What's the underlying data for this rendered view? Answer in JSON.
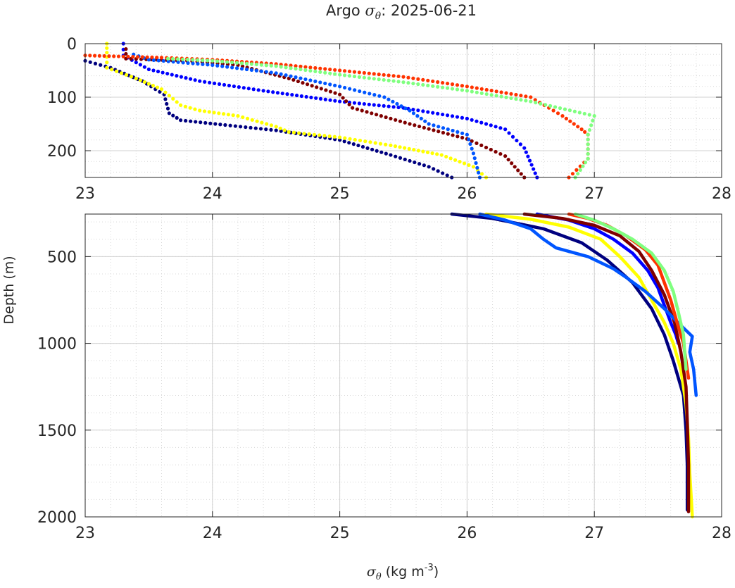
{
  "figure": {
    "title_prefix": "Argo ",
    "title_symbol": "σ",
    "title_subscript": "θ",
    "title_suffix": ": 2025-06-21"
  },
  "chart_data": [
    {
      "type": "scatter",
      "panel": "top",
      "xlim": [
        23,
        28
      ],
      "ylim": [
        0,
        250
      ],
      "y_reversed": true,
      "xticks": [
        23,
        24,
        25,
        26,
        27,
        28
      ],
      "yticks": [
        0,
        100,
        200
      ],
      "grid": true,
      "minor_grid": true,
      "xlabel": "",
      "ylabel": "",
      "series": [
        {
          "name": "profile-navy",
          "color": "#00007f",
          "marker": "dot",
          "points": [
            [
              23.0,
              32
            ],
            [
              23.2,
              45
            ],
            [
              23.45,
              70
            ],
            [
              23.62,
              95
            ],
            [
              23.66,
              130
            ],
            [
              23.75,
              143
            ],
            [
              24.1,
              152
            ],
            [
              24.5,
              162
            ],
            [
              25.0,
              180
            ],
            [
              25.4,
              208
            ],
            [
              25.7,
              230
            ],
            [
              25.88,
              250
            ]
          ]
        },
        {
          "name": "profile-yellow",
          "color": "#ffff00",
          "marker": "dot",
          "points": [
            [
              23.17,
              0
            ],
            [
              23.17,
              25
            ],
            [
              23.17,
              45
            ],
            [
              23.4,
              65
            ],
            [
              23.6,
              85
            ],
            [
              23.75,
              115
            ],
            [
              23.9,
              125
            ],
            [
              24.2,
              135
            ],
            [
              24.5,
              155
            ],
            [
              24.6,
              165
            ],
            [
              25.0,
              175
            ],
            [
              25.4,
              190
            ],
            [
              25.8,
              208
            ],
            [
              26.05,
              230
            ],
            [
              26.15,
              250
            ]
          ]
        },
        {
          "name": "profile-blue",
          "color": "#0000ff",
          "marker": "dot",
          "points": [
            [
              23.3,
              0
            ],
            [
              23.3,
              22
            ],
            [
              23.5,
              48
            ],
            [
              23.9,
              70
            ],
            [
              24.4,
              88
            ],
            [
              25.0,
              108
            ],
            [
              25.5,
              120
            ],
            [
              26.0,
              140
            ],
            [
              26.3,
              160
            ],
            [
              26.45,
              195
            ],
            [
              26.55,
              250
            ]
          ]
        },
        {
          "name": "profile-maroon",
          "color": "#7f0000",
          "marker": "dot",
          "points": [
            [
              23.32,
              10
            ],
            [
              23.32,
              28
            ],
            [
              23.8,
              32
            ],
            [
              24.2,
              40
            ],
            [
              24.6,
              65
            ],
            [
              25.0,
              95
            ],
            [
              25.1,
              120
            ],
            [
              25.55,
              150
            ],
            [
              26.0,
              178
            ],
            [
              26.3,
              210
            ],
            [
              26.45,
              250
            ]
          ]
        },
        {
          "name": "profile-lightblue",
          "color": "#0055ff",
          "marker": "dot",
          "points": [
            [
              23.38,
              20
            ],
            [
              23.5,
              30
            ],
            [
              24.0,
              40
            ],
            [
              24.5,
              55
            ],
            [
              25.0,
              80
            ],
            [
              25.35,
              100
            ],
            [
              25.55,
              125
            ],
            [
              25.7,
              150
            ],
            [
              26.0,
              170
            ],
            [
              26.05,
              205
            ],
            [
              26.1,
              250
            ]
          ]
        },
        {
          "name": "profile-orange",
          "color": "#ff3300",
          "marker": "dot",
          "points": [
            [
              23.0,
              22
            ],
            [
              23.6,
              26
            ],
            [
              24.0,
              30
            ],
            [
              24.5,
              38
            ],
            [
              25.0,
              50
            ],
            [
              25.5,
              62
            ],
            [
              26.0,
              80
            ],
            [
              26.5,
              100
            ],
            [
              26.75,
              135
            ],
            [
              26.9,
              160
            ],
            [
              26.95,
              170
            ],
            [
              26.95,
              215
            ],
            [
              26.8,
              250
            ]
          ]
        },
        {
          "name": "profile-lightgreen",
          "color": "#7fff7f",
          "marker": "dot",
          "points": [
            [
              23.65,
              28
            ],
            [
              24.0,
              32
            ],
            [
              24.5,
              42
            ],
            [
              25.0,
              58
            ],
            [
              25.5,
              72
            ],
            [
              26.0,
              88
            ],
            [
              26.5,
              108
            ],
            [
              27.0,
              135
            ],
            [
              26.95,
              170
            ],
            [
              26.95,
              215
            ],
            [
              26.85,
              250
            ]
          ]
        }
      ]
    },
    {
      "type": "line",
      "panel": "bottom",
      "xlim": [
        23,
        28
      ],
      "ylim": [
        255,
        2000
      ],
      "y_reversed": true,
      "xticks": [
        23,
        24,
        25,
        26,
        27,
        28
      ],
      "yticks": [
        500,
        1000,
        1500,
        2000
      ],
      "grid": true,
      "minor_grid": true,
      "xlabel_symbol": "σ",
      "xlabel_subscript": "θ",
      "xlabel_units": " (kg m",
      "xlabel_exp": "-3",
      "xlabel_close": ")",
      "ylabel": "Depth (m)",
      "series": [
        {
          "name": "profile-navy",
          "color": "#00007f",
          "points": [
            [
              25.88,
              255
            ],
            [
              26.2,
              280
            ],
            [
              26.6,
              340
            ],
            [
              26.9,
              420
            ],
            [
              27.1,
              520
            ],
            [
              27.3,
              650
            ],
            [
              27.45,
              800
            ],
            [
              27.55,
              950
            ],
            [
              27.62,
              1100
            ],
            [
              27.7,
              1300
            ],
            [
              27.72,
              1500
            ],
            [
              27.73,
              1700
            ],
            [
              27.73,
              1960
            ]
          ]
        },
        {
          "name": "profile-yellow",
          "color": "#ffff00",
          "points": [
            [
              26.15,
              255
            ],
            [
              26.5,
              285
            ],
            [
              26.8,
              330
            ],
            [
              27.05,
              400
            ],
            [
              27.2,
              500
            ],
            [
              27.35,
              620
            ],
            [
              27.45,
              750
            ],
            [
              27.55,
              880
            ],
            [
              27.62,
              1000
            ],
            [
              27.68,
              1150
            ],
            [
              27.72,
              1350
            ],
            [
              27.74,
              1550
            ],
            [
              27.75,
              1750
            ],
            [
              27.77,
              2000
            ]
          ]
        },
        {
          "name": "profile-blue",
          "color": "#0000ff",
          "points": [
            [
              26.55,
              255
            ],
            [
              26.8,
              290
            ],
            [
              27.0,
              340
            ],
            [
              27.15,
              400
            ],
            [
              27.3,
              480
            ],
            [
              27.42,
              580
            ],
            [
              27.5,
              680
            ],
            [
              27.55,
              780
            ],
            [
              27.6,
              880
            ],
            [
              27.64,
              950
            ],
            [
              27.66,
              1000
            ]
          ]
        },
        {
          "name": "profile-maroon",
          "color": "#7f0000",
          "points": [
            [
              26.45,
              255
            ],
            [
              26.75,
              280
            ],
            [
              27.0,
              320
            ],
            [
              27.2,
              380
            ],
            [
              27.35,
              470
            ],
            [
              27.45,
              580
            ],
            [
              27.55,
              720
            ],
            [
              27.63,
              880
            ],
            [
              27.68,
              1050
            ],
            [
              27.72,
              1250
            ],
            [
              27.73,
              1450
            ],
            [
              27.74,
              1700
            ],
            [
              27.74,
              1970
            ]
          ]
        },
        {
          "name": "profile-lightblue",
          "color": "#0055ff",
          "points": [
            [
              26.1,
              255
            ],
            [
              26.3,
              290
            ],
            [
              26.5,
              340
            ],
            [
              26.6,
              400
            ],
            [
              26.7,
              450
            ],
            [
              26.95,
              500
            ],
            [
              27.15,
              570
            ],
            [
              27.25,
              620
            ],
            [
              27.4,
              700
            ],
            [
              27.55,
              800
            ],
            [
              27.67,
              890
            ],
            [
              27.77,
              960
            ],
            [
              27.75,
              1050
            ],
            [
              27.78,
              1150
            ],
            [
              27.8,
              1300
            ]
          ]
        },
        {
          "name": "profile-orange",
          "color": "#ff3300",
          "points": [
            [
              26.8,
              255
            ],
            [
              26.95,
              280
            ],
            [
              27.1,
              320
            ],
            [
              27.25,
              380
            ],
            [
              27.4,
              460
            ],
            [
              27.5,
              550
            ],
            [
              27.55,
              650
            ],
            [
              27.6,
              750
            ],
            [
              27.65,
              880
            ],
            [
              27.7,
              1000
            ],
            [
              27.74,
              1200
            ]
          ]
        },
        {
          "name": "profile-lightgreen",
          "color": "#7fff7f",
          "points": [
            [
              26.85,
              255
            ],
            [
              27.0,
              290
            ],
            [
              27.15,
              340
            ],
            [
              27.3,
              400
            ],
            [
              27.45,
              480
            ],
            [
              27.55,
              580
            ],
            [
              27.62,
              700
            ],
            [
              27.66,
              820
            ],
            [
              27.7,
              950
            ],
            [
              27.72,
              1150
            ]
          ]
        }
      ]
    }
  ]
}
